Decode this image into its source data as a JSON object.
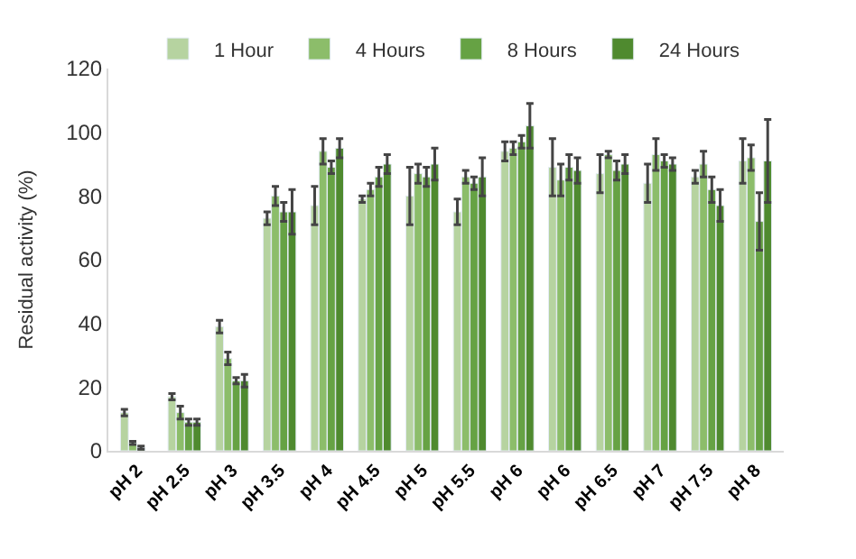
{
  "chart_data": {
    "type": "bar",
    "ylabel": "Residual activity (%)",
    "categories": [
      "pH 2",
      "pH 2.5",
      "pH 3",
      "pH 3.5",
      "pH 4",
      "pH 4.5",
      "pH 5",
      "pH 5.5",
      "pH 6",
      "pH 6",
      "pH 6.5",
      "pH 7",
      "pH 7.5",
      "pH 8"
    ],
    "series": [
      {
        "name": "1 Hour",
        "color": "#b6d3a0",
        "values": [
          12,
          17,
          39,
          73,
          77,
          79,
          80,
          75,
          94,
          89,
          87,
          84,
          86,
          91
        ],
        "errors": [
          1,
          1,
          2,
          2,
          6,
          1,
          9,
          4,
          3,
          9,
          6,
          6,
          2,
          7
        ]
      },
      {
        "name": "4 Hours",
        "color": "#8cbd6a",
        "values": [
          2.5,
          12,
          29,
          80,
          94,
          82,
          87,
          86,
          95,
          85,
          93,
          93,
          90,
          92
        ],
        "errors": [
          0.5,
          2,
          2,
          3,
          4,
          2,
          3,
          2,
          2,
          5,
          1,
          5,
          4,
          4
        ]
      },
      {
        "name": "8 Hours",
        "color": "#66a244",
        "values": [
          1,
          9,
          22,
          75,
          89,
          86,
          86,
          84,
          97,
          89,
          88,
          91,
          82,
          72
        ],
        "errors": [
          0.5,
          1,
          1,
          3,
          2,
          3,
          3,
          2,
          2,
          4,
          3,
          2,
          4,
          9
        ]
      },
      {
        "name": "24 Hours",
        "color": "#4f8a2f",
        "values": [
          null,
          9,
          22,
          75,
          95,
          90,
          90,
          86,
          102,
          88,
          90,
          90,
          77,
          91
        ],
        "errors": [
          null,
          1,
          2,
          7,
          3,
          3,
          5,
          6,
          7,
          4,
          3,
          2,
          5,
          13
        ]
      }
    ],
    "ylim": [
      0,
      120
    ],
    "yticks": [
      0,
      20,
      40,
      60,
      80,
      100,
      120
    ],
    "grid": false,
    "legend": "top"
  }
}
